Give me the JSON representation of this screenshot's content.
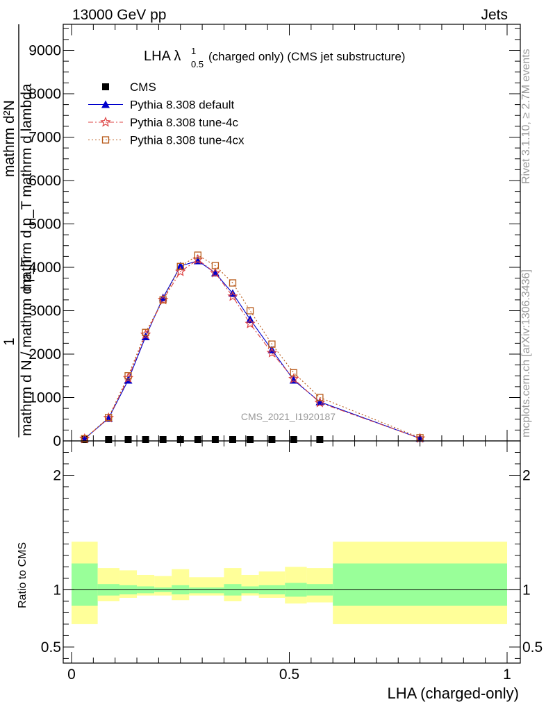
{
  "header": {
    "energy_label": "13000 GeV pp",
    "process_label": "Jets"
  },
  "side_labels": {
    "rivet": "Rivet 3.1.10, ≥ 2.7M events",
    "mcplots": "mcplots.cern.ch [arXiv:1306.3436]"
  },
  "watermark": "CMS_2021_I1920187",
  "chart_data": {
    "type": "line",
    "title": {
      "main": "LHA λ",
      "sup": "1",
      "sub": "0.5",
      "rest": "(charged only) (CMS jet substructure)"
    },
    "ylabel": {
      "line1": "mathrm d²N",
      "line2": "mathrm d p_T mathrm d lambda",
      "numerator": "1",
      "denominator": "mathrm d N / mathrm d p_T"
    },
    "ratio_ylabel": "Ratio to CMS",
    "xlabel": "LHA (charged-only)",
    "xlim": [
      0,
      1
    ],
    "ylim": [
      0,
      9600
    ],
    "ratio_ylim": [
      0.36,
      2.3
    ],
    "main_y_ticks": [
      {
        "value": 0,
        "label": "0"
      },
      {
        "value": 1000,
        "label": "1000"
      },
      {
        "value": 2000,
        "label": "2000"
      },
      {
        "value": 3000,
        "label": "3000"
      },
      {
        "value": 4000,
        "label": "4000"
      },
      {
        "value": 5000,
        "label": "5000"
      },
      {
        "value": 6000,
        "label": "6000"
      },
      {
        "value": 7000,
        "label": "7000"
      },
      {
        "value": 8000,
        "label": "8000"
      },
      {
        "value": 9000,
        "label": "9000"
      }
    ],
    "ratio_y_ticks": [
      {
        "value": 0.5,
        "label": "0.5"
      },
      {
        "value": 1,
        "label": "1"
      },
      {
        "value": 2,
        "label": "2"
      }
    ],
    "x_ticks": [
      {
        "value": 0,
        "label": "0"
      },
      {
        "value": 0.5,
        "label": "0.5"
      },
      {
        "value": 1,
        "label": "1"
      }
    ],
    "x": [
      0.03,
      0.085,
      0.13,
      0.17,
      0.21,
      0.25,
      0.29,
      0.33,
      0.37,
      0.41,
      0.46,
      0.51,
      0.57,
      0.8
    ],
    "series": [
      {
        "name": "CMS",
        "marker": "square-filled",
        "color": "#000000",
        "line": "none",
        "values": [
          0,
          0,
          0,
          0,
          0,
          0,
          0,
          0,
          0,
          0,
          0,
          0,
          0,
          0
        ]
      },
      {
        "name": "Pythia 8.308 default",
        "marker": "triangle-filled",
        "color": "#0000cc",
        "line": "solid",
        "values": [
          50,
          520,
          1400,
          2400,
          3300,
          4030,
          4150,
          3870,
          3400,
          2800,
          2100,
          1400,
          900,
          60
        ]
      },
      {
        "name": "Pythia 8.308 tune-4c",
        "marker": "star",
        "color": "#dd4444",
        "line": "dashdot",
        "values": [
          50,
          530,
          1450,
          2450,
          3250,
          3900,
          4180,
          3870,
          3330,
          2700,
          2030,
          1430,
          880,
          60
        ]
      },
      {
        "name": "Pythia 8.308 tune-4cx",
        "marker": "square-open",
        "color": "#b85a1a",
        "line": "dotted",
        "values": [
          50,
          540,
          1500,
          2500,
          3250,
          4020,
          4280,
          4040,
          3640,
          3000,
          2230,
          1570,
          1000,
          75
        ]
      }
    ],
    "cms_x_extra": [],
    "ratio_bands": [
      {
        "x0": 0.0,
        "x1": 0.06,
        "yellow": [
          0.7,
          1.42
        ],
        "green": [
          0.86,
          1.23
        ]
      },
      {
        "x0": 0.06,
        "x1": 0.11,
        "yellow": [
          0.9,
          1.19
        ],
        "green": [
          0.95,
          1.05
        ]
      },
      {
        "x0": 0.11,
        "x1": 0.15,
        "yellow": [
          0.93,
          1.17
        ],
        "green": [
          0.96,
          1.04
        ]
      },
      {
        "x0": 0.15,
        "x1": 0.19,
        "yellow": [
          0.95,
          1.13
        ],
        "green": [
          0.97,
          1.03
        ]
      },
      {
        "x0": 0.19,
        "x1": 0.23,
        "yellow": [
          0.95,
          1.12
        ],
        "green": [
          0.98,
          1.02
        ]
      },
      {
        "x0": 0.23,
        "x1": 0.27,
        "yellow": [
          0.91,
          1.18
        ],
        "green": [
          0.96,
          1.04
        ]
      },
      {
        "x0": 0.27,
        "x1": 0.35,
        "yellow": [
          0.95,
          1.11
        ],
        "green": [
          0.97,
          1.02
        ]
      },
      {
        "x0": 0.35,
        "x1": 0.39,
        "yellow": [
          0.9,
          1.19
        ],
        "green": [
          0.95,
          1.05
        ]
      },
      {
        "x0": 0.39,
        "x1": 0.43,
        "yellow": [
          0.95,
          1.13
        ],
        "green": [
          0.97,
          1.03
        ]
      },
      {
        "x0": 0.43,
        "x1": 0.49,
        "yellow": [
          0.93,
          1.16
        ],
        "green": [
          0.96,
          1.04
        ]
      },
      {
        "x0": 0.49,
        "x1": 0.54,
        "yellow": [
          0.88,
          1.2
        ],
        "green": [
          0.94,
          1.06
        ]
      },
      {
        "x0": 0.54,
        "x1": 0.6,
        "yellow": [
          0.89,
          1.19
        ],
        "green": [
          0.95,
          1.05
        ]
      },
      {
        "x0": 0.6,
        "x1": 1.0,
        "yellow": [
          0.7,
          1.42
        ],
        "green": [
          0.86,
          1.23
        ]
      }
    ],
    "legend_placement": "top-left",
    "grid": false
  }
}
